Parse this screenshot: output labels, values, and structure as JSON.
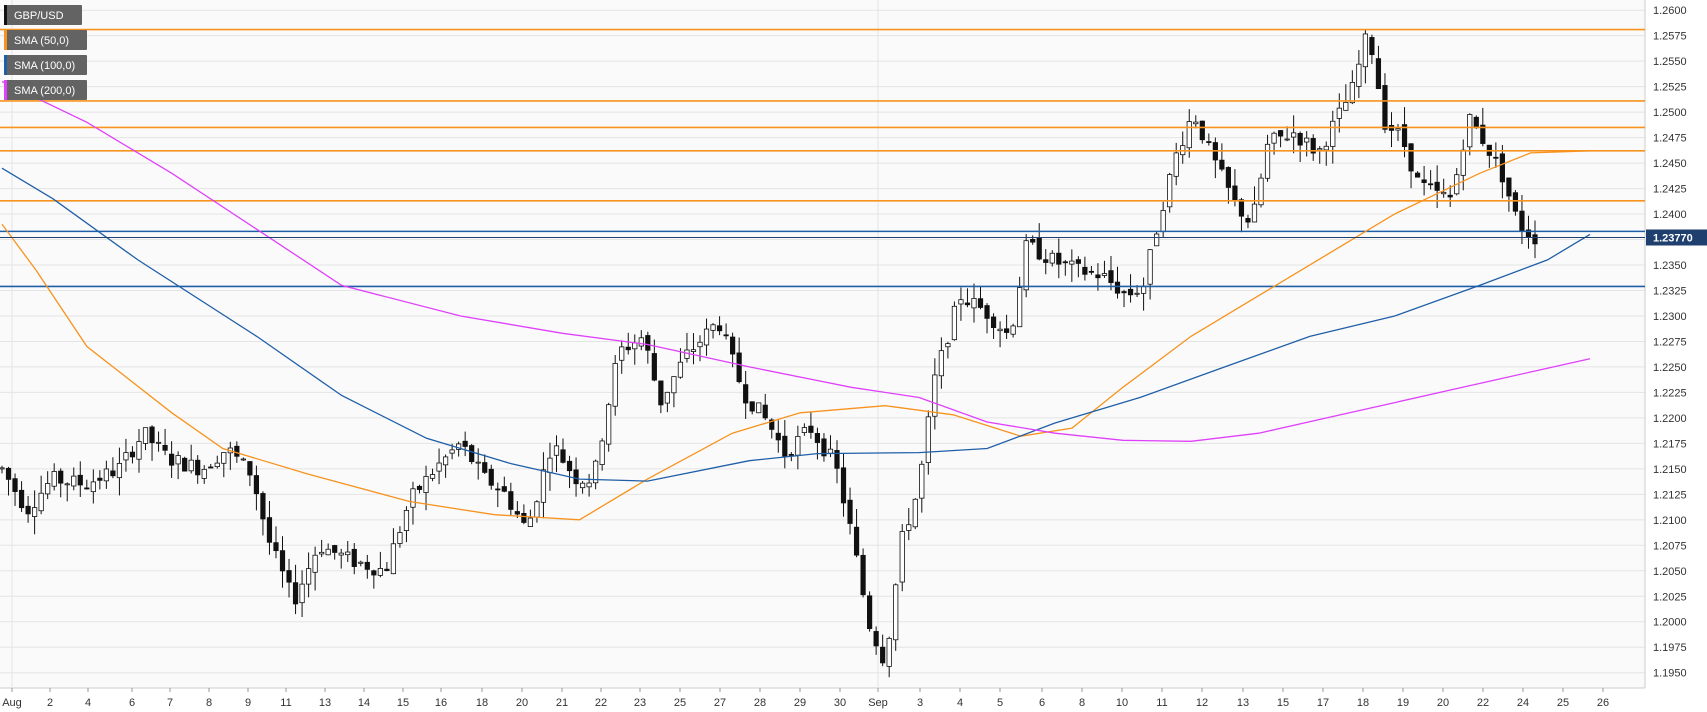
{
  "symbol": "GBP/USD",
  "legend": [
    {
      "label": "SMA (50,0)",
      "color": "#f7931e"
    },
    {
      "label": "SMA (100,0)",
      "color": "#1f5fa8"
    },
    {
      "label": "SMA (200,0)",
      "color": "#e040fb"
    }
  ],
  "current_price_label": "1.23770",
  "chart_data": {
    "type": "candlestick",
    "title": "GBP/USD",
    "ylim": [
      1.1935,
      1.261
    ],
    "y_ticks": [
      "1.2600",
      "1.2575",
      "1.2550",
      "1.2525",
      "1.2500",
      "1.2475",
      "1.2450",
      "1.2425",
      "1.2400",
      "1.2375",
      "1.2350",
      "1.2325",
      "1.2300",
      "1.2275",
      "1.2250",
      "1.2225",
      "1.2200",
      "1.2175",
      "1.2150",
      "1.2125",
      "1.2100",
      "1.2075",
      "1.2050",
      "1.2025",
      "1.2000",
      "1.1975",
      "1.1950"
    ],
    "x_ticks": [
      "Aug",
      "2",
      "4",
      "6",
      "7",
      "8",
      "9",
      "11",
      "13",
      "14",
      "15",
      "16",
      "18",
      "20",
      "21",
      "22",
      "23",
      "25",
      "27",
      "28",
      "29",
      "30",
      "Sep",
      "3",
      "4",
      "5",
      "6",
      "8",
      "10",
      "11",
      "12",
      "13",
      "15",
      "17",
      "18",
      "19",
      "20",
      "22",
      "24",
      "25",
      "26"
    ],
    "current_price": 1.2377,
    "horizontal_levels": [
      {
        "value": 1.2581,
        "color": "#f7931e"
      },
      {
        "value": 1.2511,
        "color": "#f7931e"
      },
      {
        "value": 1.2485,
        "color": "#f7931e"
      },
      {
        "value": 1.2462,
        "color": "#f7931e"
      },
      {
        "value": 1.2413,
        "color": "#f7931e"
      },
      {
        "value": 1.2383,
        "color": "#1f5fa8"
      },
      {
        "value": 1.2329,
        "color": "#1f5fa8"
      }
    ],
    "series": [
      {
        "name": "SMA (50,0)",
        "color": "#f7931e",
        "points": [
          [
            0,
            1.239
          ],
          [
            0.02,
            1.2345
          ],
          [
            0.05,
            1.227
          ],
          [
            0.1,
            1.2205
          ],
          [
            0.13,
            1.217
          ],
          [
            0.18,
            1.2145
          ],
          [
            0.24,
            1.2118
          ],
          [
            0.29,
            1.2105
          ],
          [
            0.34,
            1.21
          ],
          [
            0.38,
            1.214
          ],
          [
            0.43,
            1.2185
          ],
          [
            0.47,
            1.2205
          ],
          [
            0.52,
            1.2212
          ],
          [
            0.56,
            1.2203
          ],
          [
            0.6,
            1.2182
          ],
          [
            0.63,
            1.219
          ],
          [
            0.66,
            1.223
          ],
          [
            0.7,
            1.228
          ],
          [
            0.74,
            1.232
          ],
          [
            0.78,
            1.236
          ],
          [
            0.82,
            1.24
          ],
          [
            0.87,
            1.244
          ],
          [
            0.9,
            1.246
          ],
          [
            0.935,
            1.2462
          ]
        ]
      },
      {
        "name": "SMA (100,0)",
        "color": "#1f5fa8",
        "points": [
          [
            0,
            1.2445
          ],
          [
            0.03,
            1.2415
          ],
          [
            0.08,
            1.2355
          ],
          [
            0.15,
            1.228
          ],
          [
            0.2,
            1.2222
          ],
          [
            0.25,
            1.218
          ],
          [
            0.3,
            1.2155
          ],
          [
            0.34,
            1.214
          ],
          [
            0.38,
            1.2138
          ],
          [
            0.44,
            1.2158
          ],
          [
            0.48,
            1.2165
          ],
          [
            0.54,
            1.2166
          ],
          [
            0.58,
            1.217
          ],
          [
            0.62,
            1.2195
          ],
          [
            0.67,
            1.222
          ],
          [
            0.72,
            1.225
          ],
          [
            0.77,
            1.228
          ],
          [
            0.82,
            1.23
          ],
          [
            0.87,
            1.233
          ],
          [
            0.91,
            1.2355
          ],
          [
            0.935,
            1.238
          ]
        ]
      },
      {
        "name": "SMA (200,0)",
        "color": "#e040fb",
        "points": [
          [
            0,
            1.253
          ],
          [
            0.05,
            1.249
          ],
          [
            0.1,
            1.244
          ],
          [
            0.15,
            1.2385
          ],
          [
            0.2,
            1.233
          ],
          [
            0.27,
            1.23
          ],
          [
            0.33,
            1.2283
          ],
          [
            0.38,
            1.2272
          ],
          [
            0.44,
            1.225
          ],
          [
            0.5,
            1.223
          ],
          [
            0.54,
            1.222
          ],
          [
            0.58,
            1.2196
          ],
          [
            0.62,
            1.2185
          ],
          [
            0.66,
            1.2178
          ],
          [
            0.7,
            1.2177
          ],
          [
            0.74,
            1.2185
          ],
          [
            0.78,
            1.22
          ],
          [
            0.82,
            1.2215
          ],
          [
            0.86,
            1.223
          ],
          [
            0.9,
            1.2245
          ],
          [
            0.935,
            1.2258
          ]
        ]
      }
    ],
    "candles_summary": {
      "start_close": 1.215,
      "lows": [
        1.2015,
        1.2055,
        1.196
      ],
      "highs": [
        1.229,
        1.231,
        1.239,
        1.251,
        1.258
      ],
      "last_close": 1.2377
    }
  }
}
